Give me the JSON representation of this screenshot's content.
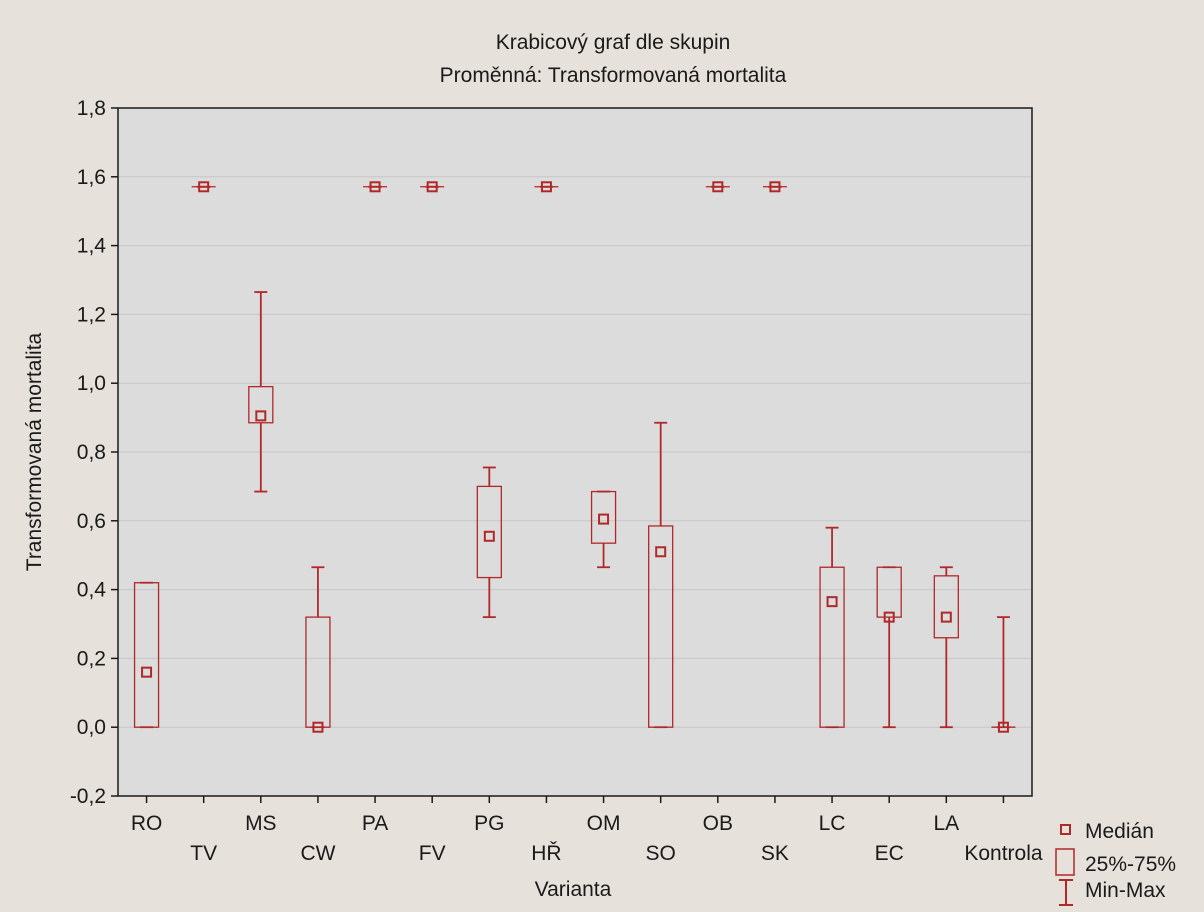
{
  "chart_data": {
    "type": "boxplot",
    "title": "Krabicový graf dle skupin",
    "subtitle": "Proměnná: Transformovaná mortalita",
    "xlabel": "Varianta",
    "ylabel": "Transformovaná mortalita",
    "ylim": [
      -0.2,
      1.8
    ],
    "yticks": [
      "-0,2",
      "0,0",
      "0,2",
      "0,4",
      "0,6",
      "0,8",
      "1,0",
      "1,2",
      "1,4",
      "1,6",
      "1,8"
    ],
    "categories": [
      "RO",
      "TV",
      "MS",
      "CW",
      "PA",
      "FV",
      "PG",
      "HŘ",
      "OM",
      "SO",
      "OB",
      "SK",
      "LC",
      "EC",
      "LA",
      "Kontrola"
    ],
    "groups": [
      {
        "name": "RO",
        "median": 0.16,
        "q1": 0.0,
        "q3": 0.42,
        "min": 0.0,
        "max": 0.42
      },
      {
        "name": "TV",
        "median": 1.571,
        "q1": 1.571,
        "q3": 1.571,
        "min": 1.571,
        "max": 1.571
      },
      {
        "name": "MS",
        "median": 0.905,
        "q1": 0.885,
        "q3": 0.99,
        "min": 0.685,
        "max": 1.265
      },
      {
        "name": "CW",
        "median": 0.0,
        "q1": 0.0,
        "q3": 0.32,
        "min": 0.0,
        "max": 0.465
      },
      {
        "name": "PA",
        "median": 1.571,
        "q1": 1.571,
        "q3": 1.571,
        "min": 1.571,
        "max": 1.571
      },
      {
        "name": "FV",
        "median": 1.571,
        "q1": 1.571,
        "q3": 1.571,
        "min": 1.571,
        "max": 1.571
      },
      {
        "name": "PG",
        "median": 0.555,
        "q1": 0.435,
        "q3": 0.7,
        "min": 0.32,
        "max": 0.755
      },
      {
        "name": "HŘ",
        "median": 1.571,
        "q1": 1.571,
        "q3": 1.571,
        "min": 1.571,
        "max": 1.571
      },
      {
        "name": "OM",
        "median": 0.605,
        "q1": 0.535,
        "q3": 0.685,
        "min": 0.465,
        "max": 0.685
      },
      {
        "name": "SO",
        "median": 0.51,
        "q1": 0.0,
        "q3": 0.585,
        "min": 0.0,
        "max": 0.885
      },
      {
        "name": "OB",
        "median": 1.571,
        "q1": 1.571,
        "q3": 1.571,
        "min": 1.571,
        "max": 1.571
      },
      {
        "name": "SK",
        "median": 1.571,
        "q1": 1.571,
        "q3": 1.571,
        "min": 1.571,
        "max": 1.571
      },
      {
        "name": "LC",
        "median": 0.365,
        "q1": 0.0,
        "q3": 0.465,
        "min": 0.0,
        "max": 0.58
      },
      {
        "name": "EC",
        "median": 0.32,
        "q1": 0.32,
        "q3": 0.465,
        "min": 0.0,
        "max": 0.465
      },
      {
        "name": "LA",
        "median": 0.32,
        "q1": 0.26,
        "q3": 0.44,
        "min": 0.0,
        "max": 0.465
      },
      {
        "name": "Kontrola",
        "median": 0.0,
        "q1": 0.0,
        "q3": 0.0,
        "min": 0.0,
        "max": 0.32
      }
    ],
    "legend": {
      "position": "bottom-right",
      "items": [
        {
          "label": "Medián",
          "symbol": "square"
        },
        {
          "label": "25%-75%",
          "symbol": "box"
        },
        {
          "label": "Min-Max",
          "symbol": "whisker"
        }
      ]
    },
    "grid": true,
    "colors": {
      "series": "#b02828",
      "plot_bg": "#dcdcdc",
      "page_bg": "#e6e1da",
      "grid": "#c6c6c6",
      "axis": "#1a1a1a",
      "text": "#1a1a1a"
    }
  }
}
